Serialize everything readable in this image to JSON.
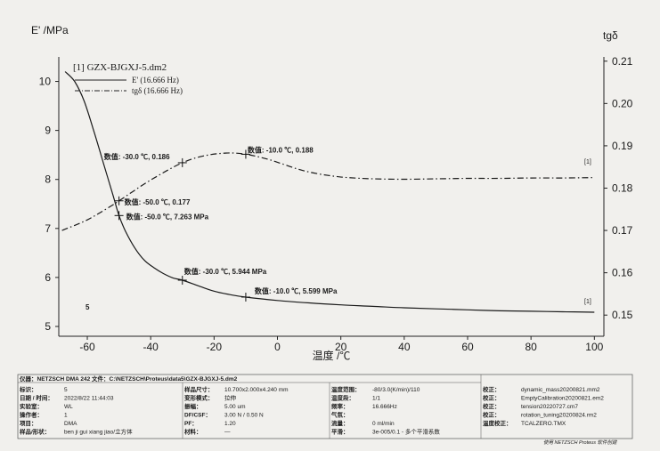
{
  "chart_data": {
    "type": "line",
    "y_left_label": "E' /MPa",
    "y_right_label": "tgδ",
    "xlabel": "温度 /℃",
    "xlim": [
      -69,
      103
    ],
    "ylim_left": [
      4.8,
      10.5
    ],
    "ylim_right": [
      0.145,
      0.211
    ],
    "x_ticks": [
      -60,
      -40,
      -20,
      0,
      20,
      40,
      60,
      80,
      100
    ],
    "y_left_ticks": [
      5,
      6,
      7,
      8,
      9,
      10
    ],
    "y_right_ticks": [
      0.15,
      0.16,
      0.17,
      0.18,
      0.19,
      0.2,
      0.21
    ],
    "y_left_tick_labels": [
      "5",
      "6",
      "7",
      "8",
      "9",
      "10"
    ],
    "y_right_tick_labels": [
      "0.15",
      "0.16",
      "0.17",
      "0.18",
      "0.19",
      "0.20",
      "0.21"
    ],
    "legend": {
      "title": "[1] GZX-BJGXJ-5.dm2",
      "entries": [
        "E' (16.666 Hz)",
        "tgδ (16.666 Hz)"
      ]
    },
    "series": [
      {
        "name": "E' (16.666 Hz)",
        "axis": "left",
        "style": "solid",
        "x": [
          -67,
          -64,
          -61,
          -58,
          -55,
          -52,
          -50,
          -48,
          -45,
          -42,
          -39,
          -36,
          -33,
          -30,
          -25,
          -20,
          -15,
          -10,
          0,
          10,
          20,
          30,
          40,
          50,
          60,
          70,
          80,
          90,
          100
        ],
        "y": [
          10.2,
          10.0,
          9.6,
          9.0,
          8.35,
          7.7,
          7.263,
          6.95,
          6.6,
          6.35,
          6.2,
          6.08,
          5.99,
          5.944,
          5.83,
          5.72,
          5.65,
          5.599,
          5.53,
          5.48,
          5.44,
          5.41,
          5.38,
          5.36,
          5.34,
          5.32,
          5.31,
          5.3,
          5.29
        ]
      },
      {
        "name": "tgδ (16.666 Hz)",
        "axis": "right",
        "style": "dashdot",
        "x": [
          -68,
          -64,
          -60,
          -56,
          -52,
          -50,
          -46,
          -42,
          -38,
          -34,
          -30,
          -26,
          -22,
          -18,
          -14,
          -10,
          -6,
          -2,
          2,
          6,
          10,
          16,
          22,
          30,
          40,
          50,
          60,
          70,
          80,
          90,
          100
        ],
        "y": [
          0.17,
          0.1712,
          0.1725,
          0.1742,
          0.176,
          0.177,
          0.179,
          0.181,
          0.1828,
          0.1845,
          0.186,
          0.1871,
          0.1878,
          0.1882,
          0.1883,
          0.188,
          0.1874,
          0.1866,
          0.1856,
          0.1846,
          0.1838,
          0.183,
          0.1825,
          0.1822,
          0.1821,
          0.1822,
          0.1823,
          0.1823,
          0.1824,
          0.1824,
          0.1825
        ]
      }
    ],
    "annotations": [
      {
        "text": "数值: -30.0 ℃, 0.186",
        "x": -30,
        "y": 0.186,
        "axis": "right"
      },
      {
        "text": "数值: -10.0 ℃, 0.188",
        "x": -10,
        "y": 0.188,
        "axis": "right"
      },
      {
        "text": "数值: -50.0 ℃, 0.177",
        "x": -50,
        "y": 0.177,
        "axis": "right"
      },
      {
        "text": "数值: -50.0 ℃, 7.263 MPa",
        "x": -50,
        "y": 7.263,
        "axis": "left"
      },
      {
        "text": "数值: -30.0 ℃, 5.944 MPa",
        "x": -30,
        "y": 5.944,
        "axis": "left"
      },
      {
        "text": "数值: -10.0 ℃, 5.599 MPa",
        "x": -10,
        "y": 5.599,
        "axis": "left"
      }
    ],
    "end_markers": [
      "[1]",
      "[1]"
    ],
    "segment_label": "5"
  },
  "info_table": {
    "row1": "仪器：NETZSCH DMA 242  文件：C:\\NETZSCH\\Proteus\\data5\\GZX-BJGXJ-5.dm2",
    "col1": [
      {
        "k": "标识：",
        "v": "5"
      },
      {
        "k": "日期 / 时间：",
        "v": "2022/8/22 11:44:03"
      },
      {
        "k": "实验室：",
        "v": "WL"
      },
      {
        "k": "操作者：",
        "v": "1"
      },
      {
        "k": "项目：",
        "v": "DMA"
      },
      {
        "k": "样品/形状：",
        "v": "ben ji gui xiang jiao/立方体"
      }
    ],
    "col2": [
      {
        "k": "样品尺寸：",
        "v": "10.700x2.000x4.240 mm"
      },
      {
        "k": "变形模式：",
        "v": "拉伸"
      },
      {
        "k": "振幅：",
        "v": "5.00 um"
      },
      {
        "k": "DF/CSF：",
        "v": "3.00 N / 0.50 N"
      },
      {
        "k": "PF：",
        "v": "1.20"
      },
      {
        "k": "材料：",
        "v": "—"
      }
    ],
    "col3": [
      {
        "k": "温度范围：",
        "v": "-80/3.0(K/min)/110"
      },
      {
        "k": "温度段：",
        "v": "1/1"
      },
      {
        "k": "频率：",
        "v": "16.666Hz"
      },
      {
        "k": "气氛：",
        "v": ""
      },
      {
        "k": "流量：",
        "v": "0 ml/min"
      },
      {
        "k": "平滑：",
        "v": "3e-005/0.1 - 多个平滑系数"
      }
    ],
    "col4": [
      {
        "k": "校正：",
        "v": "dynamic_mass20200821.mm2"
      },
      {
        "k": "校正：",
        "v": "EmptyCalibration20200821.em2"
      },
      {
        "k": "校正：",
        "v": "tension20220727.cm7"
      },
      {
        "k": "校正：",
        "v": "rotation_tuning20200824.rm2"
      },
      {
        "k": "温度校正：",
        "v": "TCALZERO.TMX"
      }
    ],
    "footer": "使用 NETZSCH Proteus 软件创建"
  }
}
